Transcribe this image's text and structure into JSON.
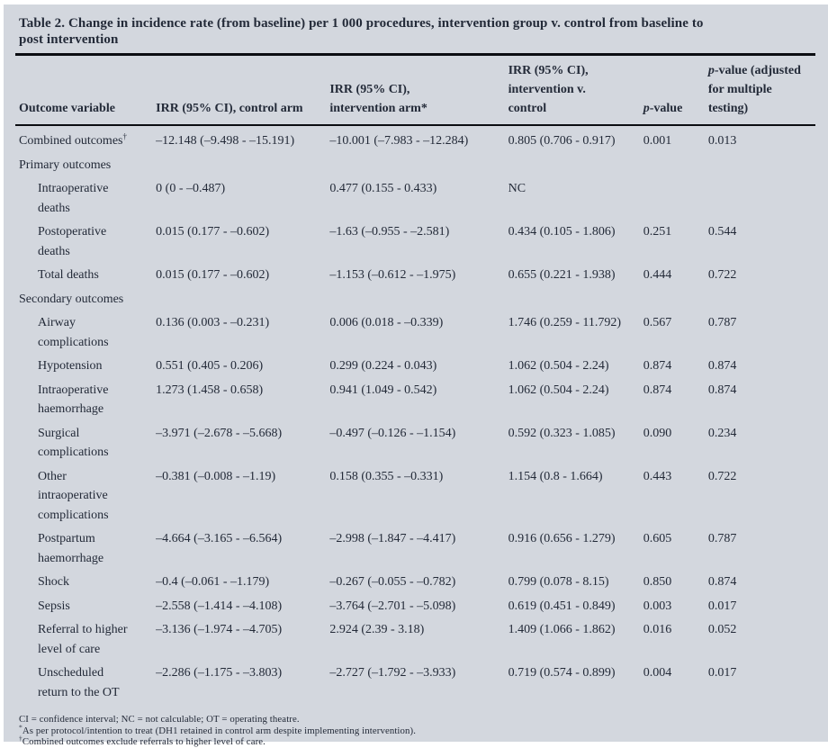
{
  "table": {
    "title": "Table 2. Change in incidence rate (from baseline) per 1 000 procedures, intervention group v. control from baseline to\npost intervention",
    "header": {
      "outcome": "Outcome variable",
      "irr_control": "IRR (95% CI), control arm",
      "irr_intervention": "IRR (95% CI),\nintervention arm*",
      "irr_int_v_control": "IRR (95% CI),\nintervention v.\ncontrol",
      "p_italic": "p",
      "p_rest": "-value",
      "p_adj_italic": "p",
      "p_adj_rest": "-value (adjusted\nfor multiple\ntesting)"
    },
    "rows": [
      {
        "label": "Combined outcomes",
        "sup": "†",
        "indent": false,
        "section": false,
        "values": [
          "–12.148 (–9.498 - –15.191)",
          "–10.001 (–7.983 - –12.284)",
          "0.805 (0.706 - 0.917)",
          "0.001",
          "0.013"
        ]
      },
      {
        "label": "Primary outcomes",
        "indent": false,
        "section": true,
        "values": [
          "",
          "",
          "",
          "",
          ""
        ]
      },
      {
        "label": "Intraoperative\ndeaths",
        "indent": true,
        "section": false,
        "values": [
          "0 (0 - –0.487)",
          "0.477 (0.155 - 0.433)",
          "NC",
          "",
          ""
        ]
      },
      {
        "label": "Postoperative\ndeaths",
        "indent": true,
        "section": false,
        "values": [
          "0.015 (0.177 - –0.602)",
          "–1.63 (–0.955 - –2.581)",
          "0.434 (0.105 - 1.806)",
          "0.251",
          "0.544"
        ]
      },
      {
        "label": "Total deaths",
        "indent": true,
        "section": false,
        "values": [
          "0.015 (0.177 - –0.602)",
          "–1.153 (–0.612 - –1.975)",
          "0.655 (0.221 - 1.938)",
          "0.444",
          "0.722"
        ]
      },
      {
        "label": "Secondary outcomes",
        "indent": false,
        "section": true,
        "values": [
          "",
          "",
          "",
          "",
          ""
        ]
      },
      {
        "label": "Airway\ncomplications",
        "indent": true,
        "section": false,
        "values": [
          "0.136 (0.003 - –0.231)",
          "0.006 (0.018 - –0.339)",
          "1.746 (0.259 - 11.792)",
          "0.567",
          "0.787"
        ]
      },
      {
        "label": "Hypotension",
        "indent": true,
        "section": false,
        "values": [
          "0.551 (0.405 - 0.206)",
          "0.299 (0.224 - 0.043)",
          "1.062 (0.504 - 2.24)",
          "0.874",
          "0.874"
        ]
      },
      {
        "label": "Intraoperative\nhaemorrhage",
        "indent": true,
        "section": false,
        "values": [
          "1.273 (1.458 - 0.658)",
          "0.941 (1.049 - 0.542)",
          "1.062 (0.504 - 2.24)",
          "0.874",
          "0.874"
        ]
      },
      {
        "label": "Surgical\ncomplications",
        "indent": true,
        "section": false,
        "values": [
          "–3.971 (–2.678 - –5.668)",
          "–0.497 (–0.126 - –1.154)",
          "0.592 (0.323 - 1.085)",
          "0.090",
          "0.234"
        ]
      },
      {
        "label": "Other\nintraoperative\ncomplications",
        "indent": true,
        "section": false,
        "values": [
          "–0.381 (–0.008 - –1.19)",
          "0.158 (0.355 - –0.331)",
          "1.154 (0.8 - 1.664)",
          "0.443",
          "0.722"
        ]
      },
      {
        "label": "Postpartum\nhaemorrhage",
        "indent": true,
        "section": false,
        "values": [
          "–4.664 (–3.165 - –6.564)",
          "–2.998 (–1.847 - –4.417)",
          "0.916 (0.656 - 1.279)",
          "0.605",
          "0.787"
        ]
      },
      {
        "label": "Shock",
        "indent": true,
        "section": false,
        "values": [
          "–0.4 (–0.061 - –1.179)",
          "–0.267 (–0.055 - –0.782)",
          "0.799 (0.078 - 8.15)",
          "0.850",
          "0.874"
        ]
      },
      {
        "label": "Sepsis",
        "indent": true,
        "section": false,
        "values": [
          "–2.558 (–1.414 - –4.108)",
          "–3.764 (–2.701 - –5.098)",
          "0.619 (0.451 - 0.849)",
          "0.003",
          "0.017"
        ]
      },
      {
        "label": "Referral to higher\nlevel of care",
        "indent": true,
        "section": false,
        "values": [
          "–3.136 (–1.974 - –4.705)",
          "2.924 (2.39 - 3.18)",
          "1.409 (1.066 - 1.862)",
          "0.016",
          "0.052"
        ]
      },
      {
        "label": "Unscheduled\nreturn to the OT",
        "indent": true,
        "section": false,
        "values": [
          "–2.286 (–1.175 - –3.803)",
          "–2.727 (–1.792 - –3.933)",
          "0.719 (0.574 - 0.899)",
          "0.004",
          "0.017"
        ]
      }
    ],
    "footnotes": [
      {
        "marker": "",
        "text": "CI = confidence interval; NC = not calculable; OT = operating theatre."
      },
      {
        "marker": "*",
        "text": "As per protocol/intention to treat (DH1 retained in control arm despite implementing intervention)."
      },
      {
        "marker": "†",
        "text": "Combined outcomes exclude referrals to higher level of care."
      }
    ]
  }
}
